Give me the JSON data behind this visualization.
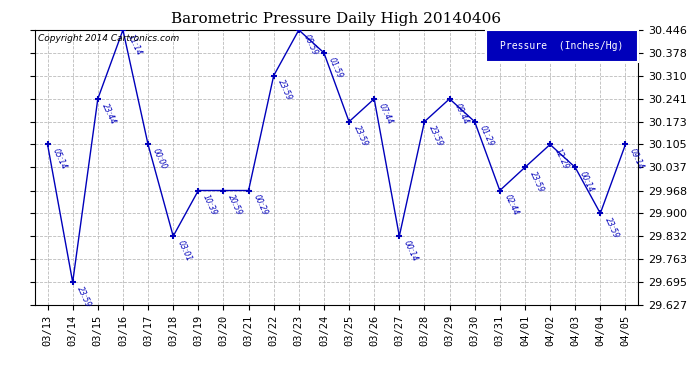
{
  "title": "Barometric Pressure Daily High 20140406",
  "copyright": "Copyright 2014 Cartronics.com",
  "legend_label": "Pressure  (Inches/Hg)",
  "line_color": "#0000BB",
  "background_color": "#ffffff",
  "grid_color": "#bbbbbb",
  "ylim": [
    29.627,
    30.446
  ],
  "yticks": [
    29.627,
    29.695,
    29.763,
    29.832,
    29.9,
    29.968,
    30.037,
    30.105,
    30.173,
    30.241,
    30.31,
    30.378,
    30.446
  ],
  "dates": [
    "03/13",
    "03/14",
    "03/15",
    "03/16",
    "03/17",
    "03/18",
    "03/19",
    "03/20",
    "03/21",
    "03/22",
    "03/23",
    "03/24",
    "03/25",
    "03/26",
    "03/27",
    "03/28",
    "03/29",
    "03/30",
    "03/31",
    "04/01",
    "04/02",
    "04/03",
    "04/04",
    "04/05"
  ],
  "values": [
    30.105,
    29.695,
    30.241,
    30.446,
    30.105,
    29.832,
    29.968,
    29.968,
    29.968,
    30.31,
    30.446,
    30.378,
    30.173,
    30.241,
    29.832,
    30.173,
    30.241,
    30.173,
    29.968,
    30.037,
    30.105,
    30.037,
    29.9,
    30.105
  ],
  "point_labels": [
    "05:14",
    "23:59",
    "23:44",
    "11:14",
    "00:00",
    "03:01",
    "10:39",
    "20:59",
    "00:29",
    "23:59",
    "08:59",
    "01:59",
    "23:59",
    "07:44",
    "00:14",
    "23:59",
    "09:44",
    "01:29",
    "02:44",
    "23:59",
    "12:29",
    "00:14",
    "23:59",
    "09:14"
  ],
  "figwidth": 6.9,
  "figheight": 3.75,
  "dpi": 100
}
